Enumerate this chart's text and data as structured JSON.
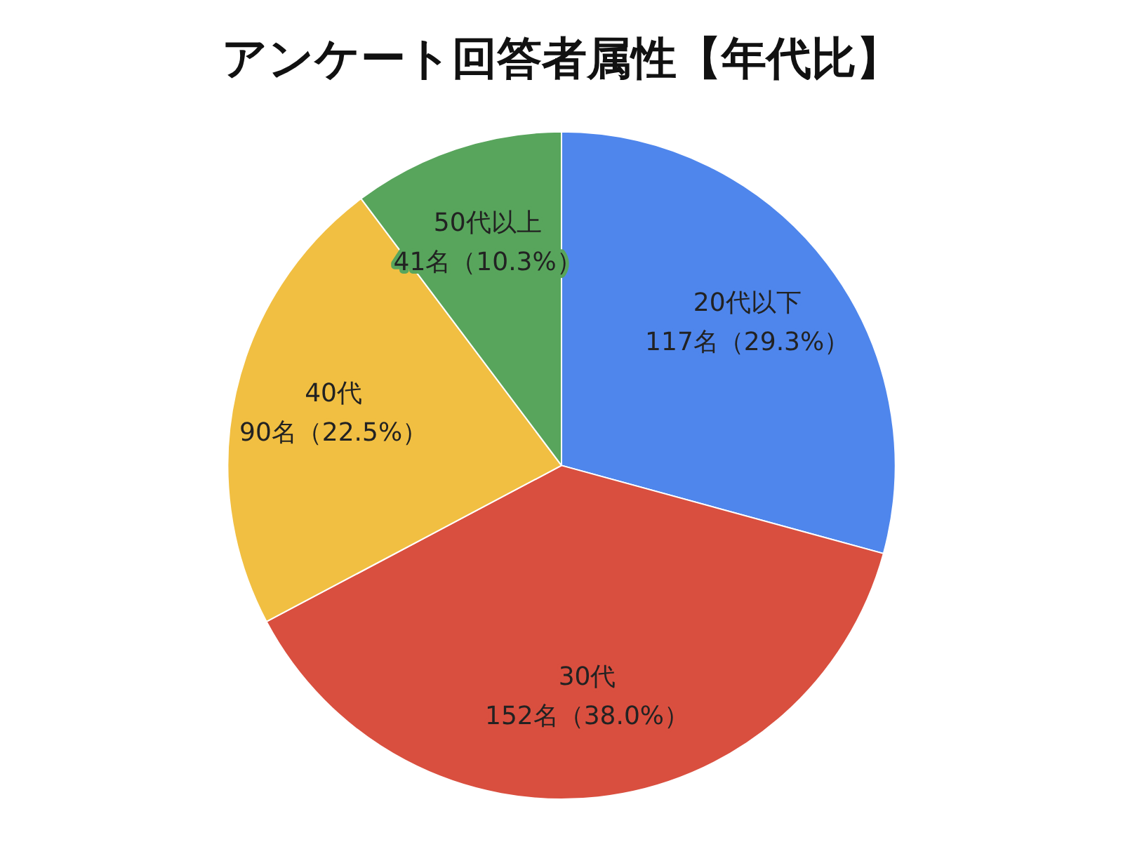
{
  "chart_data": {
    "type": "pie",
    "title": "アンケート回答者属性【年代比】",
    "categories": [
      "20代以下",
      "30代",
      "40代",
      "50代以上"
    ],
    "values": [
      117,
      152,
      90,
      41
    ],
    "colors": [
      "#4f86ec",
      "#d94f3f",
      "#f1bf42",
      "#58a55c"
    ],
    "value_labels": [
      "117名（29.3%）",
      "152名（38.0%）",
      "90名（22.5%）",
      "41名（10.3%）"
    ]
  }
}
